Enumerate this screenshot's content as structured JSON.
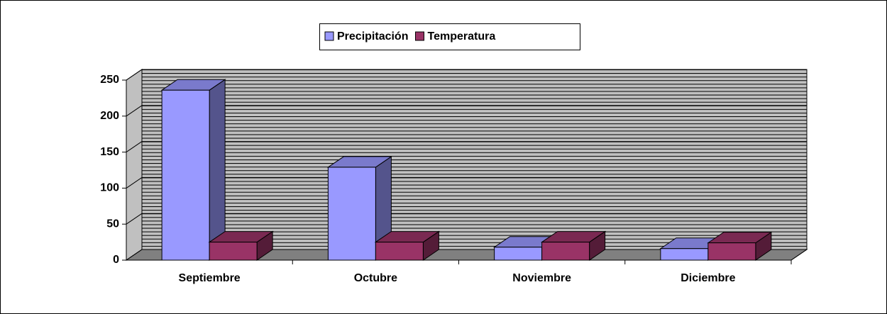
{
  "chart_data": {
    "type": "bar3d",
    "categories": [
      "Septiembre",
      "Octubre",
      "Noviembre",
      "Diciembre"
    ],
    "series": [
      {
        "name": "Precipitación",
        "color": "#9999ff",
        "values": [
          236,
          129,
          18,
          16
        ]
      },
      {
        "name": "Temperatura",
        "color": "#993366",
        "values": [
          25,
          25,
          25,
          24
        ]
      }
    ],
    "ylim": [
      0,
      250
    ],
    "yticks": [
      0,
      50,
      100,
      150,
      200,
      250
    ],
    "grid": true,
    "legend": "top"
  }
}
